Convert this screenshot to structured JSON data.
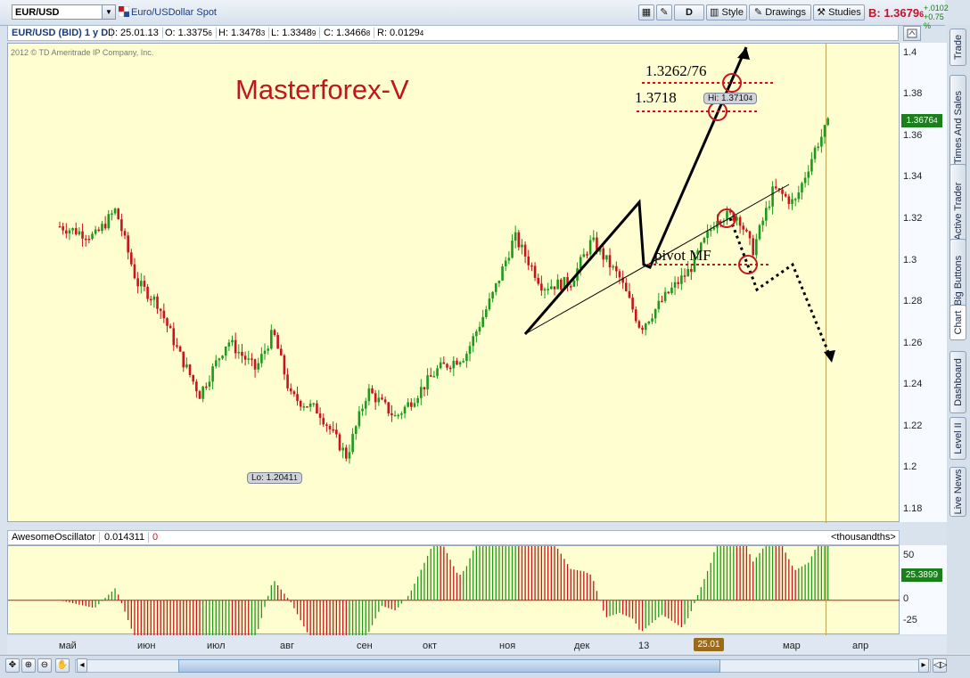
{
  "toolbar": {
    "symbol": "EUR/USD",
    "description": "Euro/USDollar Spot",
    "btn_d": "D",
    "btn_style": "Style",
    "btn_drawings": "Drawings",
    "btn_studies": "Studies",
    "bid": "B: 1.3679",
    "bid_sub": "6",
    "change_abs": "+.0102",
    "change_pct": "+0.75 %"
  },
  "right_tabs": [
    "Trade",
    "Times And Sales",
    "Active Trader",
    "Big Buttons",
    "Chart",
    "Dashboard",
    "Level II",
    "Live News"
  ],
  "info": {
    "title": "EUR/USD (BID) 1 y D",
    "date": "D: 25.01.13",
    "open": "O: 1.3375",
    "open_sub": "6",
    "high": "H: 1.3478",
    "high_sub": "3",
    "low": "L: 1.3348",
    "low_sub": "9",
    "close": "C: 1.3466",
    "close_sub": "8",
    "range": "R: 0.0129",
    "range_sub": "4"
  },
  "chart": {
    "copyright": "2012 © TD Ameritrade IP Company, Inc.",
    "watermark": "Masterforex-V",
    "last_price": "1.3676",
    "last_price_sub": "4",
    "hi_label": "Hi: 1.3710",
    "hi_label_sub": "4",
    "lo_label": "Lo: 1.2041",
    "lo_label_sub": "1",
    "annotations": {
      "level1": "1.3262/76",
      "level2": "1.3718",
      "pivot": "pivot MF"
    },
    "colors": {
      "up": "#1c9a1c",
      "down": "#c8141e",
      "background": "#fffed0",
      "marker": "#c8141e"
    }
  },
  "chart_data": {
    "type": "candlestick",
    "instrument": "EUR/USD (BID)",
    "period": "1 y D",
    "x_ticks": [
      "май",
      "июн",
      "июл",
      "авг",
      "сен",
      "окт",
      "ноя",
      "дек",
      "13",
      "мар",
      "апр"
    ],
    "current_date_label": "25.01",
    "y_ticks": [
      1.4,
      1.38,
      1.36,
      1.34,
      1.32,
      1.3,
      1.28,
      1.26,
      1.24,
      1.22,
      1.2,
      1.18
    ],
    "ylim": [
      1.174,
      1.405
    ],
    "high": 1.37104,
    "low": 1.20411,
    "last": 1.36764,
    "close_path": [
      {
        "m": 0.0,
        "v": 1.317
      },
      {
        "m": 0.5,
        "v": 1.312
      },
      {
        "m": 0.8,
        "v": 1.325
      },
      {
        "m": 1.1,
        "v": 1.29
      },
      {
        "m": 1.4,
        "v": 1.28
      },
      {
        "m": 1.7,
        "v": 1.256
      },
      {
        "m": 2.0,
        "v": 1.236
      },
      {
        "m": 2.4,
        "v": 1.262
      },
      {
        "m": 2.8,
        "v": 1.248
      },
      {
        "m": 3.05,
        "v": 1.266
      },
      {
        "m": 3.3,
        "v": 1.235
      },
      {
        "m": 3.7,
        "v": 1.228
      },
      {
        "m": 4.1,
        "v": 1.206
      },
      {
        "m": 4.4,
        "v": 1.238
      },
      {
        "m": 4.8,
        "v": 1.225
      },
      {
        "m": 5.0,
        "v": 1.232
      },
      {
        "m": 5.4,
        "v": 1.248
      },
      {
        "m": 5.8,
        "v": 1.255
      },
      {
        "m": 6.2,
        "v": 1.285
      },
      {
        "m": 6.5,
        "v": 1.312
      },
      {
        "m": 6.9,
        "v": 1.288
      },
      {
        "m": 7.3,
        "v": 1.29
      },
      {
        "m": 7.6,
        "v": 1.31
      },
      {
        "m": 8.0,
        "v": 1.292
      },
      {
        "m": 8.3,
        "v": 1.268
      },
      {
        "m": 8.7,
        "v": 1.285
      },
      {
        "m": 9.0,
        "v": 1.296
      },
      {
        "m": 9.4,
        "v": 1.322
      },
      {
        "m": 9.7,
        "v": 1.322
      },
      {
        "m": 9.9,
        "v": 1.305
      },
      {
        "m": 10.2,
        "v": 1.335
      },
      {
        "m": 10.5,
        "v": 1.328
      },
      {
        "m": 10.8,
        "v": 1.355
      },
      {
        "m": 11.0,
        "v": 1.3676
      }
    ],
    "oscillator": {
      "name": "AwesomeOscillator",
      "value": "0.014311",
      "value2": "0",
      "units": "<thousandths>",
      "last": "25.3899",
      "y_ticks": [
        50,
        0,
        -25
      ],
      "ylim": [
        -40,
        62
      ]
    }
  },
  "annotations_overlay": {
    "bottom_buttons": [
      "pan",
      "zoom-in",
      "zoom-out",
      "hand"
    ]
  }
}
